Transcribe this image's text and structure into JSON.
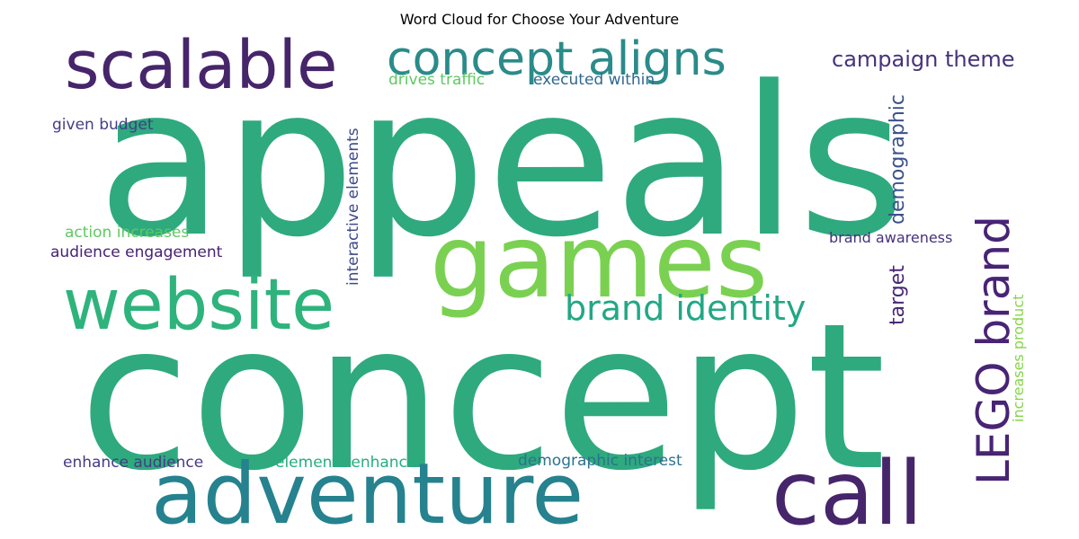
{
  "chart_data": {
    "type": "wordcloud",
    "title": "Word Cloud for Choose Your Adventure",
    "words": [
      {
        "text": "concept",
        "color": "#2eaa7e",
        "orientation": "horizontal"
      },
      {
        "text": "appeals",
        "color": "#2eaa7e",
        "orientation": "horizontal"
      },
      {
        "text": "games",
        "color": "#7ad151",
        "orientation": "horizontal"
      },
      {
        "text": "adventure",
        "color": "#25828e",
        "orientation": "horizontal"
      },
      {
        "text": "website",
        "color": "#2eb37c",
        "orientation": "horizontal"
      },
      {
        "text": "call",
        "color": "#46256b",
        "orientation": "horizontal"
      },
      {
        "text": "scalable",
        "color": "#46256b",
        "orientation": "horizontal"
      },
      {
        "text": "concept aligns",
        "color": "#2a8b8a",
        "orientation": "horizontal"
      },
      {
        "text": "LEGO brand",
        "color": "#482475",
        "orientation": "vertical"
      },
      {
        "text": "brand identity",
        "color": "#22a785",
        "orientation": "horizontal"
      },
      {
        "text": "campaign theme",
        "color": "#45337d",
        "orientation": "horizontal"
      },
      {
        "text": "demographic",
        "color": "#3b528b",
        "orientation": "vertical"
      },
      {
        "text": "target",
        "color": "#482878",
        "orientation": "vertical"
      },
      {
        "text": "interactive elements",
        "color": "#3e4a89",
        "orientation": "vertical"
      },
      {
        "text": "drives traffic",
        "color": "#5ec962",
        "orientation": "horizontal"
      },
      {
        "text": "executed within",
        "color": "#31688e",
        "orientation": "horizontal"
      },
      {
        "text": "given budget",
        "color": "#433e85",
        "orientation": "horizontal"
      },
      {
        "text": "action increases",
        "color": "#5ec962",
        "orientation": "horizontal"
      },
      {
        "text": "audience engagement",
        "color": "#482173",
        "orientation": "horizontal"
      },
      {
        "text": "brand awareness",
        "color": "#46327e",
        "orientation": "horizontal"
      },
      {
        "text": "increases product",
        "color": "#86d549",
        "orientation": "vertical"
      },
      {
        "text": "enhance audience",
        "color": "#443b84",
        "orientation": "horizontal"
      },
      {
        "text": "elements enhance",
        "color": "#26ad81",
        "orientation": "horizontal"
      },
      {
        "text": "demographic interest",
        "color": "#2c728e",
        "orientation": "horizontal"
      }
    ]
  }
}
